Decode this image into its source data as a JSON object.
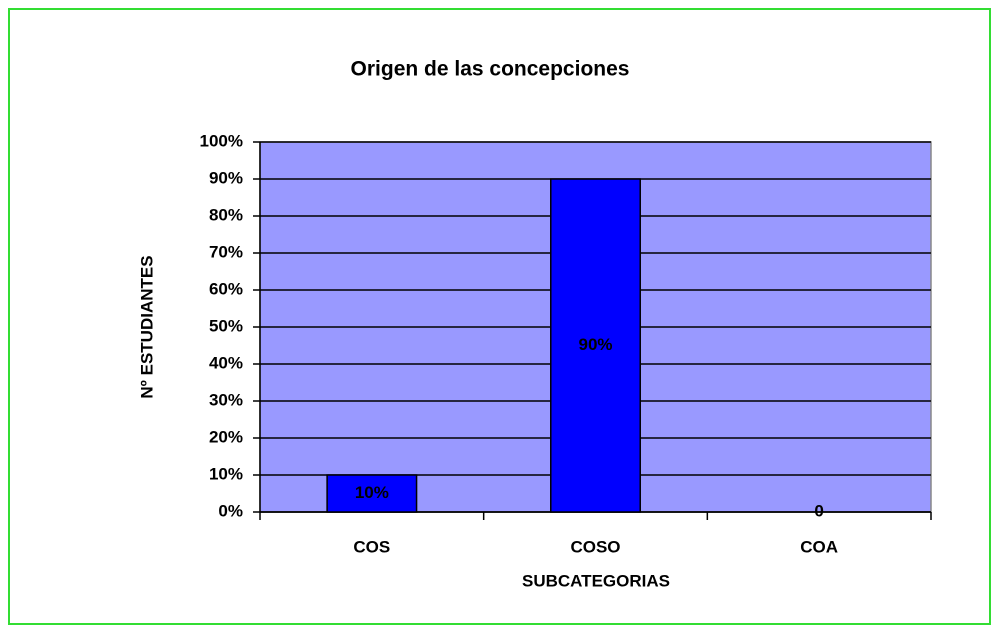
{
  "chart_data": {
    "type": "bar",
    "title": "Origen de las concepciones",
    "x_label": "SUBCATEGORIAS",
    "y_label": "Nº  ESTUDIANTES",
    "categories": [
      "COS",
      "COSO",
      "COA"
    ],
    "values": [
      10,
      90,
      0
    ],
    "value_labels": [
      "10%",
      "90%",
      "0"
    ],
    "color": "#0000ff",
    "plot_background": "#9999ff",
    "ylim": [
      0,
      100
    ],
    "yticks": [
      {
        "value": 0,
        "label": "0%"
      },
      {
        "value": 10,
        "label": "10%"
      },
      {
        "value": 20,
        "label": "20%"
      },
      {
        "value": 30,
        "label": "30%"
      },
      {
        "value": 40,
        "label": "40%"
      },
      {
        "value": 50,
        "label": "50%"
      },
      {
        "value": 60,
        "label": "60%"
      },
      {
        "value": 70,
        "label": "70%"
      },
      {
        "value": 80,
        "label": "80%"
      },
      {
        "value": 90,
        "label": "90%"
      },
      {
        "value": 100,
        "label": "100%"
      }
    ],
    "grid": true
  }
}
